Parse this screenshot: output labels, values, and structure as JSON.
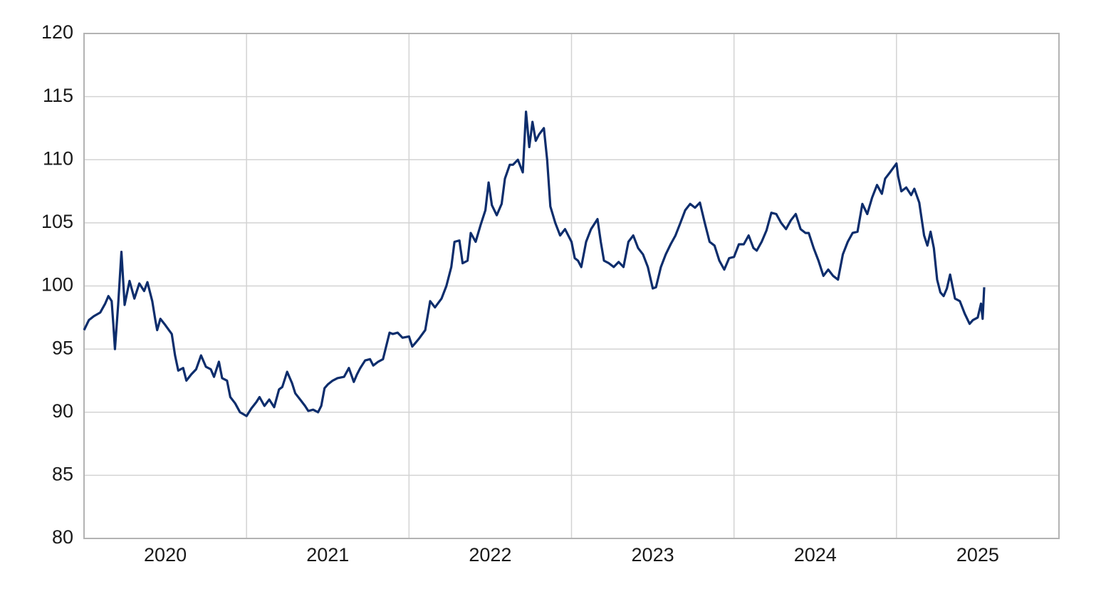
{
  "chart_data": {
    "type": "line",
    "color": "#0d2d6c",
    "grid": true,
    "xlim": [
      2020,
      2026
    ],
    "xticks": [
      2020,
      2021,
      2022,
      2023,
      2024,
      2025
    ],
    "ylim": [
      80,
      120
    ],
    "yticks": [
      80,
      85,
      90,
      95,
      100,
      105,
      110,
      115,
      120
    ],
    "x": [
      2020.0,
      2020.03,
      2020.06,
      2020.1,
      2020.13,
      2020.15,
      2020.17,
      2020.18,
      2020.19,
      2020.21,
      2020.23,
      2020.25,
      2020.28,
      2020.31,
      2020.34,
      2020.37,
      2020.39,
      2020.42,
      2020.44,
      2020.45,
      2020.47,
      2020.5,
      2020.54,
      2020.56,
      2020.58,
      2020.61,
      2020.63,
      2020.66,
      2020.69,
      2020.72,
      2020.75,
      2020.78,
      2020.8,
      2020.83,
      2020.85,
      2020.88,
      2020.9,
      2020.93,
      2020.96,
      2021.0,
      2021.03,
      2021.06,
      2021.08,
      2021.11,
      2021.14,
      2021.17,
      2021.2,
      2021.22,
      2021.25,
      2021.28,
      2021.3,
      2021.33,
      2021.36,
      2021.38,
      2021.41,
      2021.44,
      2021.46,
      2021.48,
      2021.5,
      2021.53,
      2021.56,
      2021.6,
      2021.63,
      2021.66,
      2021.68,
      2021.7,
      2021.73,
      2021.76,
      2021.78,
      2021.81,
      2021.84,
      2021.88,
      2021.9,
      2021.93,
      2021.96,
      2022.0,
      2022.02,
      2022.04,
      2022.06,
      2022.1,
      2022.13,
      2022.16,
      2022.2,
      2022.23,
      2022.26,
      2022.28,
      2022.31,
      2022.33,
      2022.36,
      2022.38,
      2022.41,
      2022.44,
      2022.47,
      2022.49,
      2022.51,
      2022.54,
      2022.57,
      2022.59,
      2022.62,
      2022.64,
      2022.67,
      2022.7,
      2022.72,
      2022.74,
      2022.76,
      2022.78,
      2022.8,
      2022.83,
      2022.85,
      2022.87,
      2022.9,
      2022.93,
      2022.96,
      2023.0,
      2023.02,
      2023.04,
      2023.06,
      2023.09,
      2023.12,
      2023.16,
      2023.18,
      2023.2,
      2023.23,
      2023.26,
      2023.29,
      2023.32,
      2023.35,
      2023.38,
      2023.41,
      2023.44,
      2023.47,
      2023.5,
      2023.52,
      2023.55,
      2023.58,
      2023.61,
      2023.64,
      2023.67,
      2023.7,
      2023.73,
      2023.76,
      2023.79,
      2023.82,
      2023.85,
      2023.88,
      2023.91,
      2023.94,
      2023.97,
      2024.0,
      2024.03,
      2024.06,
      2024.09,
      2024.12,
      2024.14,
      2024.17,
      2024.2,
      2024.23,
      2024.26,
      2024.29,
      2024.32,
      2024.35,
      2024.38,
      2024.41,
      2024.44,
      2024.46,
      2024.49,
      2024.52,
      2024.55,
      2024.58,
      2024.61,
      2024.64,
      2024.67,
      2024.7,
      2024.73,
      2024.76,
      2024.79,
      2024.82,
      2024.85,
      2024.88,
      2024.91,
      2024.93,
      2024.96,
      2025.0,
      2025.01,
      2025.03,
      2025.06,
      2025.09,
      2025.11,
      2025.14,
      2025.17,
      2025.19,
      2025.21,
      2025.23,
      2025.25,
      2025.27,
      2025.29,
      2025.31,
      2025.33,
      2025.36,
      2025.39,
      2025.42,
      2025.45,
      2025.47,
      2025.5,
      2025.52,
      2025.53,
      2025.54
    ],
    "values": [
      96.5,
      97.3,
      97.6,
      97.9,
      98.6,
      99.2,
      98.8,
      97.0,
      95.0,
      98.5,
      102.7,
      98.5,
      100.4,
      99.0,
      100.2,
      99.6,
      100.3,
      98.8,
      97.2,
      96.5,
      97.4,
      96.9,
      96.2,
      94.5,
      93.3,
      93.5,
      92.5,
      93.0,
      93.4,
      94.5,
      93.6,
      93.4,
      92.8,
      94.0,
      92.7,
      92.5,
      91.2,
      90.7,
      90.0,
      89.7,
      90.3,
      90.8,
      91.2,
      90.5,
      91.0,
      90.4,
      91.8,
      92.0,
      93.2,
      92.3,
      91.5,
      91.0,
      90.5,
      90.1,
      90.2,
      90.0,
      90.5,
      91.9,
      92.2,
      92.5,
      92.7,
      92.8,
      93.5,
      92.4,
      93.0,
      93.5,
      94.1,
      94.2,
      93.7,
      94.0,
      94.2,
      96.3,
      96.2,
      96.3,
      95.9,
      96.0,
      95.2,
      95.5,
      95.8,
      96.5,
      98.8,
      98.3,
      99.0,
      100.0,
      101.5,
      103.5,
      103.6,
      101.8,
      102.0,
      104.2,
      103.5,
      104.8,
      106.0,
      108.2,
      106.4,
      105.6,
      106.5,
      108.5,
      109.6,
      109.6,
      110.0,
      109.0,
      113.8,
      111.0,
      113.0,
      111.5,
      112.0,
      112.5,
      110.0,
      106.3,
      105.0,
      104.0,
      104.5,
      103.5,
      102.2,
      102.0,
      101.5,
      103.5,
      104.5,
      105.3,
      103.5,
      102.0,
      101.8,
      101.5,
      101.9,
      101.5,
      103.5,
      104.0,
      103.0,
      102.5,
      101.5,
      99.8,
      99.9,
      101.5,
      102.5,
      103.3,
      104.0,
      105.0,
      106.0,
      106.5,
      106.2,
      106.6,
      105.0,
      103.5,
      103.2,
      102.0,
      101.3,
      102.2,
      102.3,
      103.3,
      103.3,
      104.0,
      103.0,
      102.8,
      103.5,
      104.4,
      105.8,
      105.7,
      105.0,
      104.5,
      105.2,
      105.7,
      104.5,
      104.2,
      104.2,
      103.0,
      102.0,
      100.8,
      101.3,
      100.8,
      100.5,
      102.5,
      103.5,
      104.2,
      104.3,
      106.5,
      105.7,
      107.0,
      108.0,
      107.3,
      108.5,
      109.0,
      109.7,
      108.7,
      107.5,
      107.8,
      107.2,
      107.7,
      106.6,
      104.0,
      103.2,
      104.3,
      103.0,
      100.5,
      99.5,
      99.2,
      99.8,
      100.9,
      99.0,
      98.8,
      97.8,
      97.0,
      97.3,
      97.5,
      98.6,
      97.4,
      99.9
    ]
  }
}
